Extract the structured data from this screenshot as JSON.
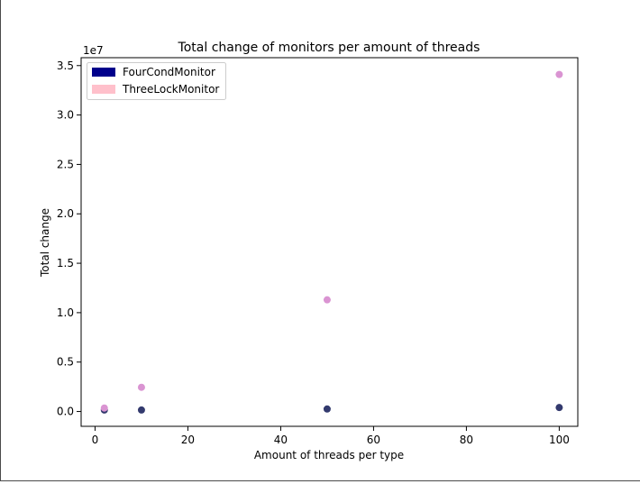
{
  "chart_data": {
    "type": "scatter",
    "title": "Total change of monitors per amount of threads",
    "xlabel": "Amount of threads per type",
    "ylabel": "Total change",
    "y_offset_label": "1e7",
    "xlim": [
      -3,
      104
    ],
    "ylim": [
      -1500000,
      35800000
    ],
    "x_ticks": [
      0,
      20,
      40,
      60,
      80,
      100
    ],
    "x_tick_labels": [
      "0",
      "20",
      "40",
      "60",
      "80",
      "100"
    ],
    "y_ticks": [
      0,
      5000000,
      10000000,
      15000000,
      20000000,
      25000000,
      30000000,
      35000000
    ],
    "y_tick_labels": [
      "0.0",
      "0.5",
      "1.0",
      "1.5",
      "2.0",
      "2.5",
      "3.0",
      "3.5"
    ],
    "grid": false,
    "legend_position": "upper-left",
    "series": [
      {
        "name": "FourCondMonitor",
        "legend_color": "#00008b",
        "marker_color": "#333a6e",
        "x": [
          2,
          10,
          50,
          100
        ],
        "y": [
          150000,
          150000,
          250000,
          400000
        ]
      },
      {
        "name": "ThreeLockMonitor",
        "legend_color": "#ffc0cb",
        "marker_color": "#da94d2",
        "x": [
          2,
          10,
          50,
          100
        ],
        "y": [
          350000,
          2450000,
          11300000,
          34100000
        ]
      }
    ]
  }
}
